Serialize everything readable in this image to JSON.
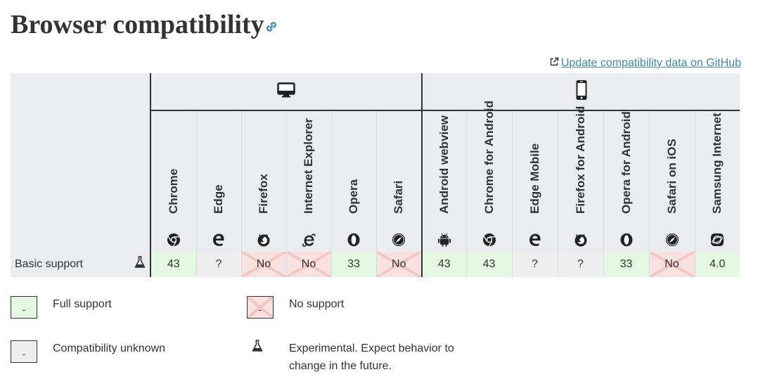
{
  "heading": {
    "title": "Browser compatibility",
    "anchor_icon": "link-icon"
  },
  "update_link": {
    "label": "Update compatibility data on GitHub",
    "icon": "external-link-icon"
  },
  "platforms": [
    {
      "name": "desktop",
      "icon": "desktop-icon"
    },
    {
      "name": "mobile",
      "icon": "mobile-icon"
    }
  ],
  "browsers": [
    {
      "name": "Chrome",
      "icon": "chrome-icon"
    },
    {
      "name": "Edge",
      "icon": "edge-icon"
    },
    {
      "name": "Firefox",
      "icon": "firefox-icon"
    },
    {
      "name": "Internet Explorer",
      "icon": "internet-explorer-icon"
    },
    {
      "name": "Opera",
      "icon": "opera-icon"
    },
    {
      "name": "Safari",
      "icon": "safari-icon"
    },
    {
      "name": "Android webview",
      "icon": "android-icon"
    },
    {
      "name": "Chrome for Android",
      "icon": "chrome-icon"
    },
    {
      "name": "Edge Mobile",
      "icon": "edge-icon"
    },
    {
      "name": "Firefox for Android",
      "icon": "firefox-icon"
    },
    {
      "name": "Opera for Android",
      "icon": "opera-icon"
    },
    {
      "name": "Safari on iOS",
      "icon": "safari-icon"
    },
    {
      "name": "Samsung Internet",
      "icon": "samsung-internet-icon"
    }
  ],
  "feature": {
    "name": "Basic support",
    "icon": "experimental-flask-icon",
    "support": [
      {
        "value": "43",
        "status": "yes"
      },
      {
        "value": "?",
        "status": "unknown"
      },
      {
        "value": "No",
        "status": "no"
      },
      {
        "value": "No",
        "status": "no"
      },
      {
        "value": "33",
        "status": "yes"
      },
      {
        "value": "No",
        "status": "no"
      },
      {
        "value": "43",
        "status": "yes"
      },
      {
        "value": "43",
        "status": "yes"
      },
      {
        "value": "?",
        "status": "unknown"
      },
      {
        "value": "?",
        "status": "unknown"
      },
      {
        "value": "33",
        "status": "yes"
      },
      {
        "value": "No",
        "status": "no"
      },
      {
        "value": "4.0",
        "status": "yes"
      }
    ]
  },
  "legend": {
    "full_support": {
      "swatch": "-",
      "label": "Full support"
    },
    "no_support": {
      "swatch": "-",
      "label": "No support"
    },
    "unknown": {
      "swatch": "-",
      "label": "Compatibility unknown"
    },
    "experimental": {
      "icon": "experimental-flask-icon",
      "label": "Experimental. Expect behavior to change in the future."
    }
  },
  "colors": {
    "link": "#3f87a6",
    "full_support_bg": "#e4f8e1",
    "no_support_bg": "#f8e1e1",
    "unknown_bg": "#eeeeee",
    "header_bg": "#eaecef"
  }
}
